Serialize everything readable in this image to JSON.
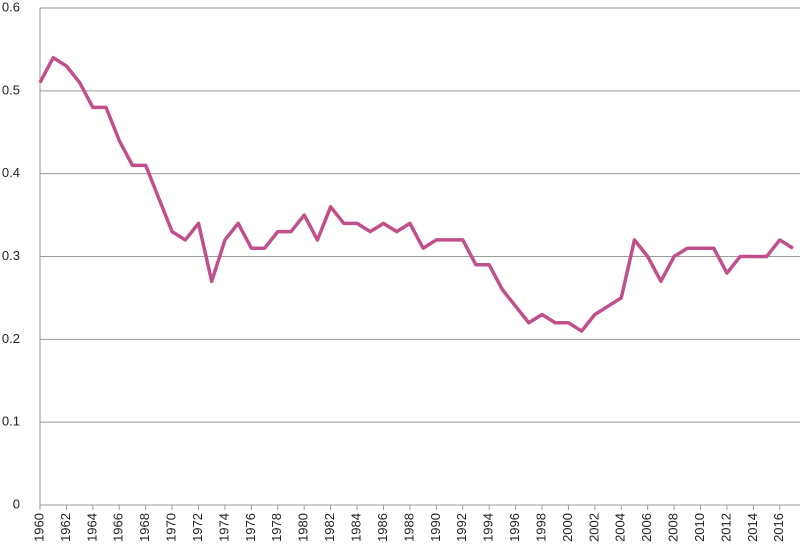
{
  "chart_data": {
    "type": "line",
    "x": [
      1960,
      1961,
      1962,
      1963,
      1964,
      1965,
      1966,
      1967,
      1968,
      1969,
      1970,
      1971,
      1972,
      1973,
      1974,
      1975,
      1976,
      1977,
      1978,
      1979,
      1980,
      1981,
      1982,
      1983,
      1984,
      1985,
      1986,
      1987,
      1988,
      1989,
      1990,
      1991,
      1992,
      1993,
      1994,
      1995,
      1996,
      1997,
      1998,
      1999,
      2000,
      2001,
      2002,
      2003,
      2004,
      2005,
      2006,
      2007,
      2008,
      2009,
      2010,
      2011,
      2012,
      2013,
      2014,
      2015,
      2016,
      2017
    ],
    "series": [
      {
        "color": "#c0508c",
        "values": [
          0.51,
          0.54,
          0.53,
          0.51,
          0.48,
          0.48,
          0.44,
          0.41,
          0.41,
          0.37,
          0.33,
          0.32,
          0.34,
          0.27,
          0.32,
          0.34,
          0.31,
          0.31,
          0.33,
          0.33,
          0.35,
          0.32,
          0.36,
          0.34,
          0.34,
          0.33,
          0.34,
          0.33,
          0.34,
          0.31,
          0.32,
          0.32,
          0.32,
          0.29,
          0.29,
          0.26,
          0.24,
          0.22,
          0.23,
          0.22,
          0.22,
          0.21,
          0.23,
          0.24,
          0.25,
          0.32,
          0.3,
          0.27,
          0.3,
          0.31,
          0.31,
          0.31,
          0.28,
          0.3,
          0.3,
          0.3,
          0.32,
          0.31
        ]
      }
    ],
    "xlim": [
      1960,
      2017
    ],
    "xticks": [
      1960,
      1962,
      1964,
      1966,
      1968,
      1970,
      1972,
      1974,
      1976,
      1978,
      1980,
      1982,
      1984,
      1986,
      1988,
      1990,
      1992,
      1994,
      1996,
      1998,
      2000,
      2002,
      2004,
      2006,
      2008,
      2010,
      2012,
      2014,
      2016
    ],
    "ylim": [
      0,
      0.6
    ],
    "yticks": [
      0,
      0.1,
      0.2,
      0.3,
      0.4,
      0.5,
      0.6
    ],
    "grid": true
  }
}
